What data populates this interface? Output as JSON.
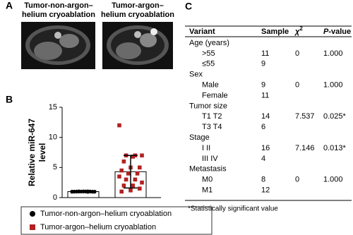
{
  "panel_labels": [
    "A",
    "B",
    "C"
  ],
  "images": [
    {
      "title_lines": [
        "Tumor-non-argon–",
        "helium cryoablation"
      ]
    },
    {
      "title_lines": [
        "Tumor-argon–",
        "helium cryoablation"
      ]
    }
  ],
  "chart_data": {
    "type": "bar",
    "ylabel_lines": [
      "Relative miR-647",
      "level"
    ],
    "ylim": [
      0,
      15
    ],
    "yticks": [
      0,
      5,
      10,
      15
    ],
    "series": [
      {
        "name": "Tumor-non-argon–helium cryoablation",
        "color": "#000000",
        "marker": "circle",
        "value": 1.0,
        "error": 0.1,
        "points": [
          1.0,
          0.95,
          1.05,
          0.98,
          1.02,
          1.0,
          0.97,
          1.03,
          0.99,
          1.01,
          1.0,
          0.96,
          1.04,
          1.0,
          0.98,
          1.02,
          1.0,
          0.99,
          1.01,
          1.0
        ]
      },
      {
        "name": "Tumor-argon–helium cryoablation",
        "color": "#b22222",
        "marker": "square",
        "value": 4.3,
        "error": 2.7,
        "points": [
          12,
          7,
          7,
          7,
          6.8,
          6,
          5,
          5,
          4.5,
          4,
          4,
          3.5,
          3,
          3,
          2.5,
          2,
          2,
          1.5,
          1.2,
          1
        ]
      }
    ]
  },
  "table": {
    "headers": [
      "Variant",
      "Sample",
      {
        "text": "χ",
        "sup": "2"
      },
      {
        "italic": "P",
        "text": "-value"
      }
    ],
    "rows": [
      [
        "Age (years)"
      ],
      [
        ">55",
        "11",
        "0",
        "1.000"
      ],
      [
        "≤55",
        "9",
        null,
        null
      ],
      [
        "Sex"
      ],
      [
        "Male",
        "9",
        "0",
        "1.000"
      ],
      [
        "Female",
        "11",
        null,
        null
      ],
      [
        "Tumor size"
      ],
      [
        "T1 T2",
        "14",
        "7.537",
        "0.025*"
      ],
      [
        "T3 T4",
        "6",
        null,
        null
      ],
      [
        "Stage"
      ],
      [
        "I II",
        "16",
        "7.146",
        "0.013*"
      ],
      [
        "III IV",
        "4",
        null,
        null
      ],
      [
        "Metastasis"
      ],
      [
        "M0",
        "8",
        "0",
        "1.000"
      ],
      [
        "M1",
        "12",
        null,
        null
      ]
    ],
    "footnote": "*Statistically significant value"
  }
}
